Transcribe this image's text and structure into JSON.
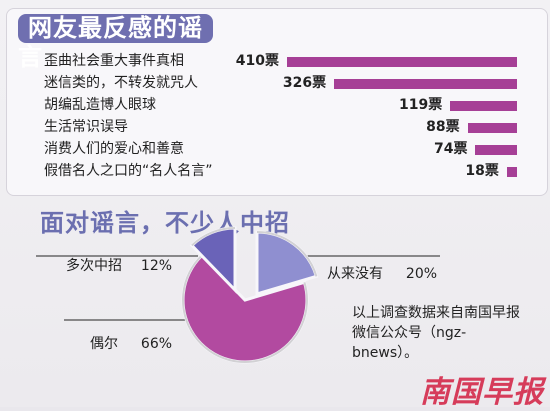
{
  "section1": {
    "title": "网友最反感的谣言"
  },
  "section2": {
    "title": "面对谣言，不少人中招"
  },
  "chart_data": [
    {
      "type": "bar",
      "title": "网友最反感的谣言",
      "categories": [
        "歪曲社会重大事件真相",
        "迷信类的，不转发就咒人",
        "胡编乱造博人眼球",
        "生活常识误导",
        "消费人们的爱心和善意",
        "假借名人之口的“名人名言”"
      ],
      "values": [
        410,
        326,
        119,
        88,
        74,
        18
      ],
      "value_labels": [
        "410票",
        "326票",
        "119票",
        "88票",
        "74票",
        "18票"
      ],
      "color": "#a63f96"
    },
    {
      "type": "pie",
      "title": "面对谣言，不少人中招",
      "slices": [
        {
          "label": "从来没有",
          "value": 20,
          "text": "20%",
          "color": "#8f8fd0"
        },
        {
          "label": "偶尔",
          "value": 66,
          "text": "66%",
          "color": "#b24aa0"
        },
        {
          "label": "多次中招",
          "value": 12,
          "text": "12%",
          "color": "#6a63b8"
        }
      ]
    }
  ],
  "pie_labels": {
    "multiple": "多次中招",
    "multiple_pct": "12%",
    "never": "从来没有",
    "never_pct": "20%",
    "sometimes": "偶尔",
    "sometimes_pct": "66%"
  },
  "source_note": "以上调查数据来自南国早报微信公众号（ngz-bnews）。",
  "watermark": "南国早报"
}
